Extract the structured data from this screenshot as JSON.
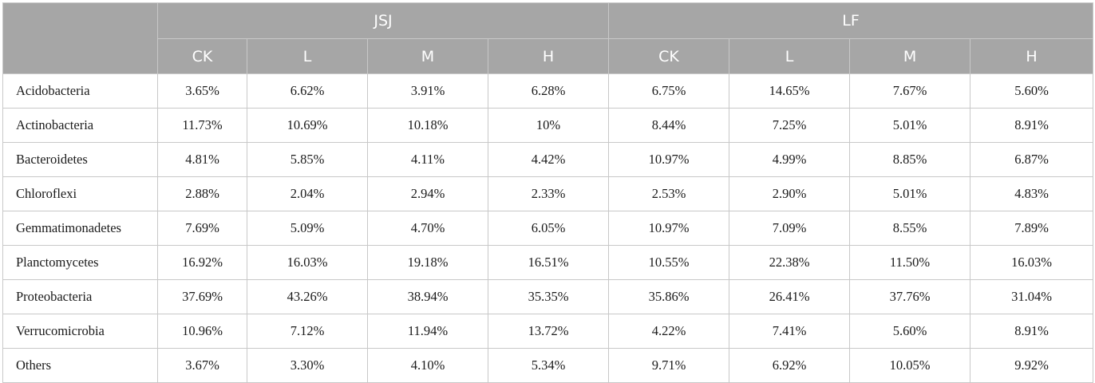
{
  "groups": [
    "JSJ",
    "LF"
  ],
  "treatments": [
    "CK",
    "L",
    "M",
    "H",
    "CK",
    "L",
    "M",
    "H"
  ],
  "rows": [
    {
      "name": "Acidobacteria",
      "values": [
        "3.65%",
        "6.62%",
        "3.91%",
        "6.28%",
        "6.75%",
        "14.65%",
        "7.67%",
        "5.60%"
      ]
    },
    {
      "name": "Actinobacteria",
      "values": [
        "11.73%",
        "10.69%",
        "10.18%",
        "10%",
        "8.44%",
        "7.25%",
        "5.01%",
        "8.91%"
      ]
    },
    {
      "name": "Bacteroidetes",
      "values": [
        "4.81%",
        "5.85%",
        "4.11%",
        "4.42%",
        "10.97%",
        "4.99%",
        "8.85%",
        "6.87%"
      ]
    },
    {
      "name": "Chloroflexi",
      "values": [
        "2.88%",
        "2.04%",
        "2.94%",
        "2.33%",
        "2.53%",
        "2.90%",
        "5.01%",
        "4.83%"
      ]
    },
    {
      "name": "Gemmatimonadetes",
      "values": [
        "7.69%",
        "5.09%",
        "4.70%",
        "6.05%",
        "10.97%",
        "7.09%",
        "8.55%",
        "7.89%"
      ]
    },
    {
      "name": "Planctomycetes",
      "values": [
        "16.92%",
        "16.03%",
        "19.18%",
        "16.51%",
        "10.55%",
        "22.38%",
        "11.50%",
        "16.03%"
      ]
    },
    {
      "name": "Proteobacteria",
      "values": [
        "37.69%",
        "43.26%",
        "38.94%",
        "35.35%",
        "35.86%",
        "26.41%",
        "37.76%",
        "31.04%"
      ]
    },
    {
      "name": "Verrucomicrobia",
      "values": [
        "10.96%",
        "7.12%",
        "11.94%",
        "13.72%",
        "4.22%",
        "7.41%",
        "5.60%",
        "8.91%"
      ]
    },
    {
      "name": "Others",
      "values": [
        "3.67%",
        "3.30%",
        "4.10%",
        "5.34%",
        "9.71%",
        "6.92%",
        "10.05%",
        "9.92%"
      ]
    }
  ]
}
